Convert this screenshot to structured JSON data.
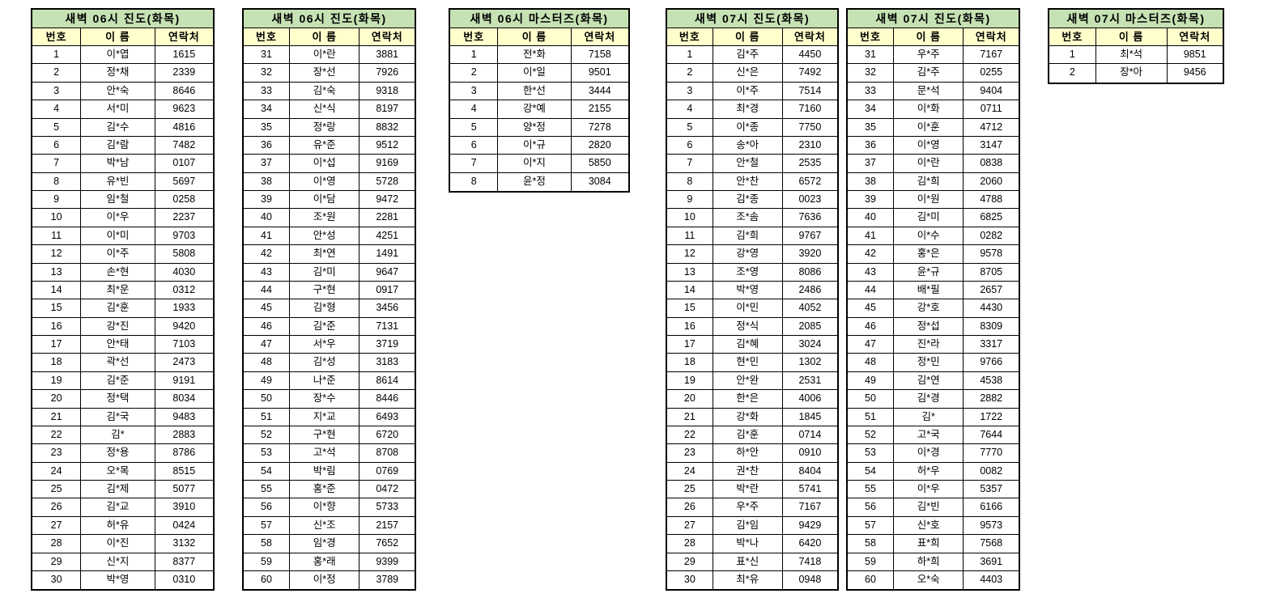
{
  "colors": {
    "title_bg": "#C6E2B4",
    "header_bg": "#FFFFCC",
    "border": "#000000",
    "text": "#000000",
    "page_bg": "#FFFFFF"
  },
  "tables": [
    {
      "title": "새벽 06시 진도(화목)",
      "columns": [
        "번호",
        "이 름",
        "연락처"
      ],
      "rows": [
        [
          "1",
          "이*엽",
          "1615"
        ],
        [
          "2",
          "정*채",
          "2339"
        ],
        [
          "3",
          "안*숙",
          "8646"
        ],
        [
          "4",
          "서*미",
          "9623"
        ],
        [
          "5",
          "김*수",
          "4816"
        ],
        [
          "6",
          "김*람",
          "7482"
        ],
        [
          "7",
          "박*남",
          "0107"
        ],
        [
          "8",
          "유*빈",
          "5697"
        ],
        [
          "9",
          "임*철",
          "0258"
        ],
        [
          "10",
          "이*우",
          "2237"
        ],
        [
          "11",
          "이*미",
          "9703"
        ],
        [
          "12",
          "이*주",
          "5808"
        ],
        [
          "13",
          "손*현",
          "4030"
        ],
        [
          "14",
          "최*운",
          "0312"
        ],
        [
          "15",
          "김*훈",
          "1933"
        ],
        [
          "16",
          "강*진",
          "9420"
        ],
        [
          "17",
          "안*태",
          "7103"
        ],
        [
          "18",
          "곽*선",
          "2473"
        ],
        [
          "19",
          "김*준",
          "9191"
        ],
        [
          "20",
          "정*택",
          "8034"
        ],
        [
          "21",
          "김*국",
          "9483"
        ],
        [
          "22",
          "김*",
          "2883"
        ],
        [
          "23",
          "정*용",
          "8786"
        ],
        [
          "24",
          "오*목",
          "8515"
        ],
        [
          "25",
          "김*제",
          "5077"
        ],
        [
          "26",
          "김*교",
          "3910"
        ],
        [
          "27",
          "허*유",
          "0424"
        ],
        [
          "28",
          "이*진",
          "3132"
        ],
        [
          "29",
          "신*지",
          "8377"
        ],
        [
          "30",
          "박*영",
          "0310"
        ]
      ]
    },
    {
      "title": "새벽 06시 진도(화목)",
      "columns": [
        "번호",
        "이 름",
        "연락처"
      ],
      "rows": [
        [
          "31",
          "이*란",
          "3881"
        ],
        [
          "32",
          "장*선",
          "7926"
        ],
        [
          "33",
          "김*숙",
          "9318"
        ],
        [
          "34",
          "신*식",
          "8197"
        ],
        [
          "35",
          "정*랑",
          "8832"
        ],
        [
          "36",
          "유*준",
          "9512"
        ],
        [
          "37",
          "이*섭",
          "9169"
        ],
        [
          "38",
          "이*영",
          "5728"
        ],
        [
          "39",
          "이*담",
          "9472"
        ],
        [
          "40",
          "조*원",
          "2281"
        ],
        [
          "41",
          "안*성",
          "4251"
        ],
        [
          "42",
          "최*연",
          "1491"
        ],
        [
          "43",
          "김*미",
          "9647"
        ],
        [
          "44",
          "구*현",
          "0917"
        ],
        [
          "45",
          "김*형",
          "3456"
        ],
        [
          "46",
          "김*준",
          "7131"
        ],
        [
          "47",
          "서*우",
          "3719"
        ],
        [
          "48",
          "김*성",
          "3183"
        ],
        [
          "49",
          "나*준",
          "8614"
        ],
        [
          "50",
          "장*수",
          "8446"
        ],
        [
          "51",
          "지*교",
          "6493"
        ],
        [
          "52",
          "구*현",
          "6720"
        ],
        [
          "53",
          "고*석",
          "8708"
        ],
        [
          "54",
          "박*림",
          "0769"
        ],
        [
          "55",
          "홍*준",
          "0472"
        ],
        [
          "56",
          "이*향",
          "5733"
        ],
        [
          "57",
          "신*조",
          "2157"
        ],
        [
          "58",
          "임*경",
          "7652"
        ],
        [
          "59",
          "홍*래",
          "9399"
        ],
        [
          "60",
          "이*정",
          "3789"
        ]
      ]
    },
    {
      "title": "새벽 06시 마스터즈(화목)",
      "columns": [
        "번호",
        "이 름",
        "연락처"
      ],
      "rows": [
        [
          "1",
          "전*화",
          "7158"
        ],
        [
          "2",
          "이*일",
          "9501"
        ],
        [
          "3",
          "한*선",
          "3444"
        ],
        [
          "4",
          "강*예",
          "2155"
        ],
        [
          "5",
          "양*정",
          "7278"
        ],
        [
          "6",
          "이*규",
          "2820"
        ],
        [
          "7",
          "이*지",
          "5850"
        ],
        [
          "8",
          "윤*정",
          "3084"
        ]
      ]
    },
    {
      "title": "새벽 07시 진도(화목)",
      "columns": [
        "번호",
        "이 름",
        "연락처"
      ],
      "rows": [
        [
          "1",
          "김*주",
          "4450"
        ],
        [
          "2",
          "신*은",
          "7492"
        ],
        [
          "3",
          "이*주",
          "7514"
        ],
        [
          "4",
          "최*경",
          "7160"
        ],
        [
          "5",
          "이*종",
          "7750"
        ],
        [
          "6",
          "송*아",
          "2310"
        ],
        [
          "7",
          "안*철",
          "2535"
        ],
        [
          "8",
          "안*찬",
          "6572"
        ],
        [
          "9",
          "김*종",
          "0023"
        ],
        [
          "10",
          "조*솜",
          "7636"
        ],
        [
          "11",
          "김*희",
          "9767"
        ],
        [
          "12",
          "강*영",
          "3920"
        ],
        [
          "13",
          "조*영",
          "8086"
        ],
        [
          "14",
          "박*영",
          "2486"
        ],
        [
          "15",
          "이*민",
          "4052"
        ],
        [
          "16",
          "정*식",
          "2085"
        ],
        [
          "17",
          "김*혜",
          "3024"
        ],
        [
          "18",
          "현*민",
          "1302"
        ],
        [
          "19",
          "안*완",
          "2531"
        ],
        [
          "20",
          "한*은",
          "4006"
        ],
        [
          "21",
          "강*화",
          "1845"
        ],
        [
          "22",
          "김*훈",
          "0714"
        ],
        [
          "23",
          "하*안",
          "0910"
        ],
        [
          "24",
          "권*찬",
          "8404"
        ],
        [
          "25",
          "박*란",
          "5741"
        ],
        [
          "26",
          "우*주",
          "7167"
        ],
        [
          "27",
          "김*임",
          "9429"
        ],
        [
          "28",
          "박*나",
          "6420"
        ],
        [
          "29",
          "표*신",
          "7418"
        ],
        [
          "30",
          "최*유",
          "0948"
        ]
      ]
    },
    {
      "title": "새벽 07시 진도(화목)",
      "columns": [
        "번호",
        "이 름",
        "연락처"
      ],
      "rows": [
        [
          "31",
          "우*주",
          "7167"
        ],
        [
          "32",
          "김*주",
          "0255"
        ],
        [
          "33",
          "문*석",
          "9404"
        ],
        [
          "34",
          "이*화",
          "0711"
        ],
        [
          "35",
          "이*훈",
          "4712"
        ],
        [
          "36",
          "이*영",
          "3147"
        ],
        [
          "37",
          "이*란",
          "0838"
        ],
        [
          "38",
          "김*희",
          "2060"
        ],
        [
          "39",
          "이*원",
          "4788"
        ],
        [
          "40",
          "김*미",
          "6825"
        ],
        [
          "41",
          "이*수",
          "0282"
        ],
        [
          "42",
          "홍*은",
          "9578"
        ],
        [
          "43",
          "윤*규",
          "8705"
        ],
        [
          "44",
          "배*필",
          "2657"
        ],
        [
          "45",
          "강*호",
          "4430"
        ],
        [
          "46",
          "정*섭",
          "8309"
        ],
        [
          "47",
          "진*라",
          "3317"
        ],
        [
          "48",
          "정*민",
          "9766"
        ],
        [
          "49",
          "김*연",
          "4538"
        ],
        [
          "50",
          "김*경",
          "2882"
        ],
        [
          "51",
          "김*",
          "1722"
        ],
        [
          "52",
          "고*국",
          "7644"
        ],
        [
          "53",
          "이*경",
          "7770"
        ],
        [
          "54",
          "허*우",
          "0082"
        ],
        [
          "55",
          "이*우",
          "5357"
        ],
        [
          "56",
          "김*빈",
          "6166"
        ],
        [
          "57",
          "신*호",
          "9573"
        ],
        [
          "58",
          "표*희",
          "7568"
        ],
        [
          "59",
          "하*희",
          "3691"
        ],
        [
          "60",
          "오*숙",
          "4403"
        ]
      ]
    },
    {
      "title": "새벽 07시 마스터즈(화목)",
      "columns": [
        "번호",
        "이 름",
        "연락처"
      ],
      "rows": [
        [
          "1",
          "최*석",
          "9851"
        ],
        [
          "2",
          "장*아",
          "9456"
        ]
      ]
    }
  ]
}
